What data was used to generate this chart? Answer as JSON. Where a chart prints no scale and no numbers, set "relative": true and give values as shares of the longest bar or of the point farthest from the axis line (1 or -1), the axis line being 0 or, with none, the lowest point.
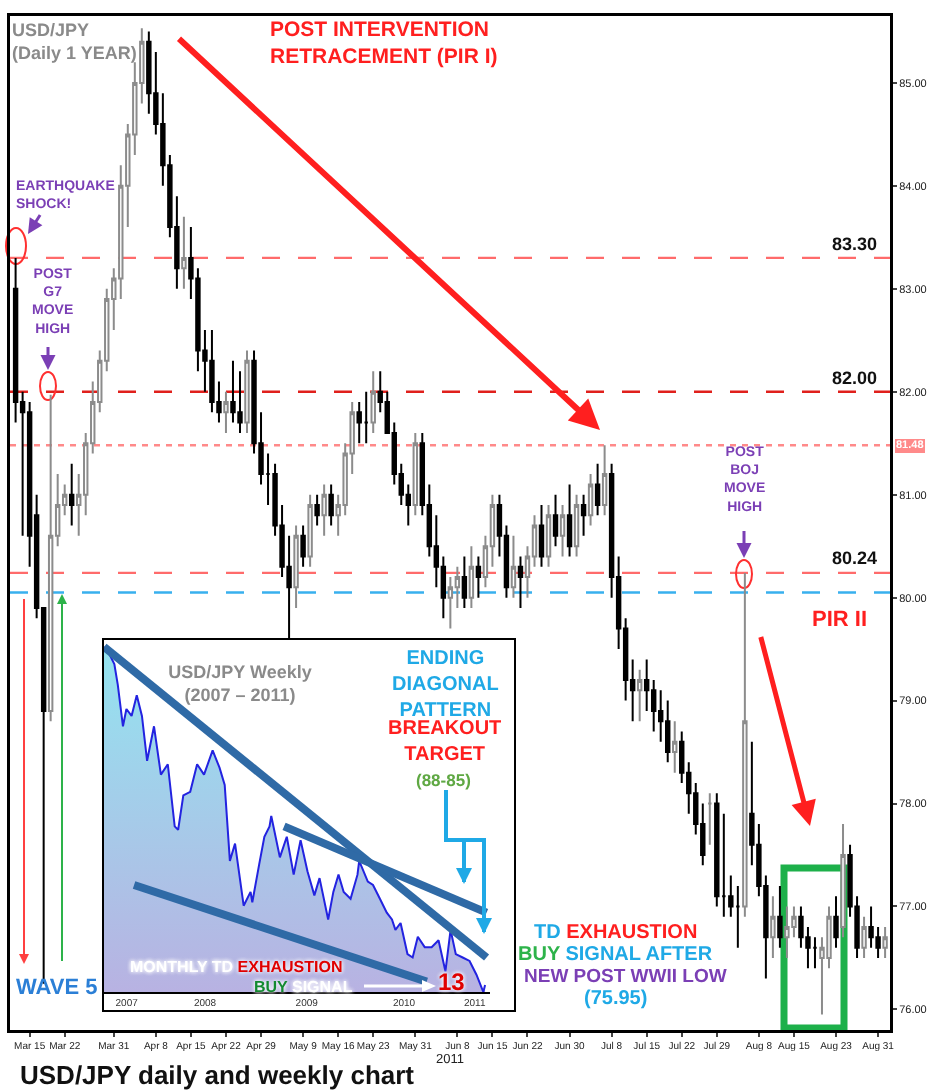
{
  "chart_data": [
    {
      "type": "candlestick",
      "title": "USD/JPY\n(Daily 1 YEAR)",
      "xlabel": "2011",
      "categories": [
        null,
        null,
        "Mar 15",
        null,
        null,
        null,
        null,
        "Mar 22",
        null,
        null,
        null,
        null,
        null,
        null,
        "Mar 31",
        null,
        null,
        null,
        null,
        null,
        "Apr 8",
        null,
        null,
        null,
        null,
        "Apr 15",
        null,
        null,
        null,
        null,
        "Apr 22",
        null,
        null,
        null,
        null,
        "Apr 29",
        null,
        null,
        null,
        null,
        null,
        "May 9",
        null,
        null,
        null,
        null,
        "May 16",
        null,
        null,
        null,
        null,
        "May 23",
        null,
        null,
        null,
        null,
        null,
        "May 31",
        null,
        null,
        null,
        null,
        null,
        "Jun 8",
        null,
        null,
        null,
        null,
        "Jun 15",
        null,
        null,
        null,
        null,
        "Jun 22",
        null,
        null,
        null,
        null,
        null,
        "Jun 30",
        null,
        null,
        null,
        null,
        null,
        "Jul 8",
        null,
        null,
        null,
        null,
        "Jul 15",
        null,
        null,
        null,
        null,
        "Jul 22",
        null,
        null,
        null,
        null,
        "Jul 29",
        null,
        null,
        null,
        null,
        null,
        "Aug 8",
        null,
        null,
        null,
        null,
        "Aug 15",
        null,
        null,
        null,
        null,
        null,
        "Aug 23",
        null,
        null,
        null,
        null,
        null,
        "Aug 31",
        null
      ],
      "ohlc": [
        [
          83.0,
          83.3,
          81.7,
          81.9
        ],
        [
          81.9,
          82.0,
          80.6,
          81.8
        ],
        [
          81.8,
          81.9,
          80.3,
          80.6
        ],
        [
          80.8,
          81.0,
          79.8,
          79.9
        ],
        [
          79.9,
          79.9,
          76.25,
          78.9
        ],
        [
          78.9,
          81.97,
          78.8,
          80.6
        ],
        [
          80.6,
          81.2,
          80.5,
          80.9
        ],
        [
          80.9,
          81.1,
          80.8,
          81.0
        ],
        [
          81.0,
          81.3,
          80.7,
          80.9
        ],
        [
          80.9,
          81.2,
          80.6,
          81.0
        ],
        [
          81.0,
          81.6,
          80.8,
          81.5
        ],
        [
          81.5,
          82.1,
          81.4,
          81.9
        ],
        [
          81.9,
          82.4,
          81.8,
          82.3
        ],
        [
          82.3,
          83.0,
          82.2,
          82.9
        ],
        [
          82.9,
          83.2,
          82.6,
          83.1
        ],
        [
          83.1,
          84.2,
          82.9,
          84.0
        ],
        [
          84.0,
          84.6,
          83.6,
          84.5
        ],
        [
          84.5,
          85.2,
          84.3,
          85.0
        ],
        [
          85.0,
          85.53,
          84.8,
          85.4
        ],
        [
          85.4,
          85.5,
          84.7,
          84.9
        ],
        [
          84.9,
          85.3,
          84.5,
          84.6
        ],
        [
          84.6,
          84.9,
          84.0,
          84.2
        ],
        [
          84.2,
          84.3,
          83.5,
          83.6
        ],
        [
          83.6,
          83.9,
          83.0,
          83.2
        ],
        [
          83.2,
          83.7,
          83.0,
          83.3
        ],
        [
          83.3,
          83.6,
          82.9,
          83.1
        ],
        [
          83.1,
          83.2,
          82.2,
          82.4
        ],
        [
          82.4,
          82.6,
          82.0,
          82.3
        ],
        [
          82.3,
          82.6,
          81.8,
          81.9
        ],
        [
          81.9,
          82.1,
          81.7,
          81.8
        ],
        [
          81.8,
          82.0,
          81.6,
          81.9
        ],
        [
          81.9,
          82.3,
          81.7,
          81.8
        ],
        [
          81.8,
          82.2,
          81.6,
          81.7
        ],
        [
          81.7,
          82.4,
          81.6,
          82.3
        ],
        [
          82.3,
          82.4,
          81.4,
          81.5
        ],
        [
          81.5,
          81.8,
          81.1,
          81.2
        ],
        [
          81.2,
          81.4,
          80.9,
          81.2
        ],
        [
          81.2,
          81.3,
          80.6,
          80.7
        ],
        [
          80.7,
          80.9,
          80.2,
          80.3
        ],
        [
          80.3,
          80.6,
          79.56,
          80.1
        ],
        [
          80.1,
          80.7,
          79.9,
          80.6
        ],
        [
          80.6,
          80.7,
          80.3,
          80.4
        ],
        [
          80.4,
          81.0,
          80.3,
          80.9
        ],
        [
          80.9,
          81.0,
          80.7,
          80.8
        ],
        [
          80.8,
          81.1,
          80.6,
          81.0
        ],
        [
          81.0,
          81.1,
          80.7,
          80.8
        ],
        [
          80.8,
          81.0,
          80.6,
          80.9
        ],
        [
          80.9,
          81.5,
          80.8,
          81.4
        ],
        [
          81.4,
          81.9,
          81.2,
          81.8
        ],
        [
          81.8,
          81.9,
          81.5,
          81.7
        ],
        [
          81.7,
          82.0,
          81.5,
          81.7
        ],
        [
          81.7,
          82.2,
          81.6,
          82.0
        ],
        [
          82.0,
          82.2,
          81.8,
          81.9
        ],
        [
          81.9,
          82.0,
          81.6,
          81.6
        ],
        [
          81.6,
          81.7,
          81.1,
          81.2
        ],
        [
          81.2,
          81.3,
          80.9,
          81.0
        ],
        [
          81.0,
          81.1,
          80.7,
          80.9
        ],
        [
          80.9,
          81.6,
          80.8,
          81.5
        ],
        [
          81.5,
          81.6,
          80.8,
          80.9
        ],
        [
          80.9,
          81.1,
          80.4,
          80.5
        ],
        [
          80.5,
          80.8,
          80.1,
          80.3
        ],
        [
          80.3,
          80.4,
          79.8,
          80.0
        ],
        [
          80.0,
          80.2,
          79.7,
          80.1
        ],
        [
          80.1,
          80.3,
          79.9,
          80.2
        ],
        [
          80.2,
          80.4,
          79.9,
          80.0
        ],
        [
          80.0,
          80.5,
          79.9,
          80.3
        ],
        [
          80.3,
          80.4,
          80.0,
          80.2
        ],
        [
          80.2,
          80.6,
          80.1,
          80.5
        ],
        [
          80.5,
          81.0,
          80.3,
          80.9
        ],
        [
          80.9,
          81.0,
          80.4,
          80.6
        ],
        [
          80.6,
          80.7,
          80.0,
          80.1
        ],
        [
          80.1,
          80.6,
          80.0,
          80.3
        ],
        [
          80.3,
          80.4,
          79.9,
          80.2
        ],
        [
          80.2,
          80.5,
          80.0,
          80.4
        ],
        [
          80.4,
          80.8,
          80.3,
          80.7
        ],
        [
          80.7,
          80.9,
          80.3,
          80.4
        ],
        [
          80.4,
          80.9,
          80.3,
          80.8
        ],
        [
          80.8,
          81.0,
          80.5,
          80.6
        ],
        [
          80.6,
          80.9,
          80.4,
          80.8
        ],
        [
          80.8,
          81.1,
          80.4,
          80.5
        ],
        [
          80.5,
          81.0,
          80.4,
          80.9
        ],
        [
          80.9,
          81.0,
          80.6,
          80.8
        ],
        [
          80.8,
          81.2,
          80.7,
          81.1
        ],
        [
          81.1,
          81.3,
          80.8,
          80.9
        ],
        [
          80.9,
          81.48,
          80.8,
          81.2
        ],
        [
          81.2,
          81.3,
          80.0,
          80.2
        ],
        [
          80.2,
          80.4,
          79.5,
          79.7
        ],
        [
          79.7,
          79.8,
          79.0,
          79.2
        ],
        [
          79.2,
          79.4,
          78.8,
          79.1
        ],
        [
          79.1,
          79.3,
          78.8,
          79.2
        ],
        [
          79.2,
          79.4,
          78.9,
          79.1
        ],
        [
          79.1,
          79.2,
          78.7,
          78.9
        ],
        [
          78.9,
          79.1,
          78.6,
          78.8
        ],
        [
          78.8,
          79.0,
          78.4,
          78.5
        ],
        [
          78.5,
          78.8,
          78.3,
          78.6
        ],
        [
          78.6,
          78.7,
          78.2,
          78.3
        ],
        [
          78.3,
          78.4,
          77.9,
          78.1
        ],
        [
          78.1,
          78.2,
          77.7,
          77.8
        ],
        [
          77.8,
          78.0,
          77.4,
          77.5
        ],
        [
          78.0,
          78.1,
          77.6,
          78.0
        ],
        [
          78.0,
          78.1,
          77.0,
          77.1
        ],
        [
          77.1,
          77.9,
          76.9,
          77.1
        ],
        [
          77.1,
          77.3,
          76.9,
          77.0
        ],
        [
          77.0,
          77.2,
          76.6,
          77.0
        ],
        [
          77.0,
          80.24,
          76.9,
          78.8
        ],
        [
          77.9,
          78.6,
          77.4,
          77.6
        ],
        [
          77.6,
          77.8,
          77.1,
          77.2
        ],
        [
          77.2,
          77.3,
          76.3,
          76.7
        ],
        [
          76.7,
          77.1,
          76.5,
          76.9
        ],
        [
          76.9,
          77.2,
          76.6,
          76.7
        ],
        [
          76.7,
          77.0,
          76.5,
          76.8
        ],
        [
          76.8,
          77.0,
          76.7,
          76.9
        ],
        [
          76.9,
          77.0,
          76.6,
          76.7
        ],
        [
          76.7,
          76.8,
          76.4,
          76.6
        ],
        [
          76.6,
          76.7,
          76.4,
          76.6
        ],
        [
          76.5,
          76.7,
          75.95,
          76.6
        ],
        [
          76.5,
          77.0,
          76.4,
          76.9
        ],
        [
          76.9,
          77.1,
          76.6,
          76.7
        ],
        [
          76.8,
          77.8,
          76.7,
          77.5
        ],
        [
          77.5,
          77.6,
          76.9,
          77.0
        ],
        [
          77.0,
          77.1,
          76.5,
          76.6
        ],
        [
          76.6,
          76.9,
          76.5,
          76.8
        ],
        [
          76.8,
          77.0,
          76.6,
          76.7
        ],
        [
          76.7,
          76.8,
          76.5,
          76.6
        ],
        [
          76.6,
          76.8,
          76.5,
          76.7
        ]
      ],
      "ylim": [
        75.8,
        85.65
      ],
      "yticks": [
        {
          "value": 76,
          "label": "76.00"
        },
        {
          "value": 77,
          "label": "77.00"
        },
        {
          "value": 78,
          "label": "78.00"
        },
        {
          "value": 79,
          "label": "79.00"
        },
        {
          "value": 80,
          "label": "80.00"
        },
        {
          "value": 81,
          "label": "81.00"
        },
        {
          "value": 82,
          "label": "82.00"
        },
        {
          "value": 83,
          "label": "83.00"
        },
        {
          "value": 84,
          "label": "84.00"
        },
        {
          "value": 85,
          "label": "85.00"
        }
      ],
      "ref_lines": [
        {
          "axis": "y",
          "value": 83.3,
          "label": "83.30",
          "color": "#ff6b6b",
          "line_style": "dashed"
        },
        {
          "axis": "y",
          "value": 82,
          "label": "82.00",
          "color": "#e0201c",
          "line_style": "dashed"
        },
        {
          "axis": "y",
          "value": 81.48,
          "label": "81.48",
          "color": "#ff8a8a",
          "line_style": "dotted"
        },
        {
          "axis": "y",
          "value": 80.24,
          "label": "80.24",
          "color": "#ff6b6b",
          "line_style": "dashed"
        },
        {
          "axis": "y",
          "value": 80.05,
          "color": "#38b0ee",
          "line_style": "dashed"
        }
      ],
      "annotations": [
        "POST INTERVENTION\nRETRACEMENT (PIR I)",
        "EARTHQUAKE\nSHOCK!",
        "POST\nG7\nMOVE\nHIGH",
        "POST\nBOJ\nMOVE\nHIGH",
        "PIR II",
        "WAVE 5",
        "TD",
        "EXHAUSTION",
        "BUY",
        "SIGNAL AFTER",
        "NEW POST WWII LOW",
        "(75.95)",
        "USD/JPY daily and weekly chart"
      ]
    },
    {
      "type": "area",
      "title": "USD/JPY Weekly\n(2007 – 2011)",
      "relative": true,
      "tick_labels": "x",
      "xlim": [
        "2007-06-01",
        "2011-09-15"
      ],
      "xticks": [
        {
          "value": "2007-09-01",
          "label": "2007"
        },
        {
          "value": "2008-07-15",
          "label": "2008"
        },
        {
          "value": "2009-09-01",
          "label": "2009"
        },
        {
          "value": "2010-10-01",
          "label": "2010"
        },
        {
          "value": "2011-07-15",
          "label": "2011"
        }
      ],
      "series": [
        {
          "type": "area",
          "color": "#2323e0",
          "x": [
            "2007-06-01",
            "2007-06-22",
            "2007-07-13",
            "2007-07-27",
            "2007-08-17",
            "2007-08-31",
            "2007-09-21",
            "2007-10-12",
            "2007-11-02",
            "2007-11-23",
            "2007-12-21",
            "2008-01-18",
            "2008-02-15",
            "2008-03-14",
            "2008-03-28",
            "2008-04-18",
            "2008-05-16",
            "2008-06-13",
            "2008-07-11",
            "2008-08-15",
            "2008-09-12",
            "2008-10-03",
            "2008-10-24",
            "2008-11-14",
            "2008-12-19",
            "2009-01-16",
            "2009-01-23",
            "2009-02-20",
            "2009-03-13",
            "2009-04-03",
            "2009-04-10",
            "2009-05-15",
            "2009-06-12",
            "2009-07-10",
            "2009-08-07",
            "2009-09-04",
            "2009-10-02",
            "2009-10-23",
            "2009-11-27",
            "2009-12-18",
            "2010-01-08",
            "2010-01-29",
            "2010-02-26",
            "2010-03-26",
            "2010-04-02",
            "2010-05-07",
            "2010-05-28",
            "2010-06-25",
            "2010-07-23",
            "2010-08-13",
            "2010-08-27",
            "2010-09-17",
            "2010-10-15",
            "2010-11-05",
            "2010-11-26",
            "2010-12-24",
            "2011-01-21",
            "2011-02-18",
            "2011-03-18",
            "2011-04-08",
            "2011-04-29",
            "2011-05-27",
            "2011-06-24",
            "2011-07-22",
            "2011-08-19",
            "2011-08-26"
          ],
          "values": [
            1.0,
            0.98,
            0.95,
            0.89,
            0.77,
            0.82,
            0.8,
            0.86,
            0.8,
            0.67,
            0.77,
            0.63,
            0.66,
            0.48,
            0.47,
            0.57,
            0.58,
            0.66,
            0.63,
            0.7,
            0.65,
            0.6,
            0.38,
            0.43,
            0.25,
            0.29,
            0.26,
            0.37,
            0.45,
            0.48,
            0.51,
            0.39,
            0.45,
            0.34,
            0.44,
            0.35,
            0.28,
            0.33,
            0.21,
            0.29,
            0.34,
            0.29,
            0.27,
            0.34,
            0.38,
            0.32,
            0.31,
            0.27,
            0.23,
            0.21,
            0.18,
            0.2,
            0.11,
            0.1,
            0.16,
            0.13,
            0.13,
            0.15,
            0.06,
            0.18,
            0.11,
            0.1,
            0.09,
            0.05,
            0.0,
            0.02
          ]
        },
        {
          "type": "line",
          "color": "#2f6aa6",
          "x": [
            "2007-06-01",
            "2011-09-01"
          ],
          "values": [
            1.0,
            0.1
          ]
        },
        {
          "type": "line",
          "color": "#2f6aa6",
          "x": [
            "2009-06-01",
            "2011-09-01"
          ],
          "values": [
            0.48,
            0.23
          ]
        },
        {
          "type": "line",
          "color": "#2f6aa6",
          "x": [
            "2007-10-01",
            "2011-01-01"
          ],
          "values": [
            0.31,
            0.03
          ]
        }
      ],
      "annotations": [
        "ENDING\nDIAGONAL\nPATTERN",
        "BREAKOUT\nTARGET",
        "(88-85)",
        "MONTHLY TD",
        "EXHAUSTION",
        "BUY",
        "SIGNAL",
        "13"
      ]
    }
  ]
}
